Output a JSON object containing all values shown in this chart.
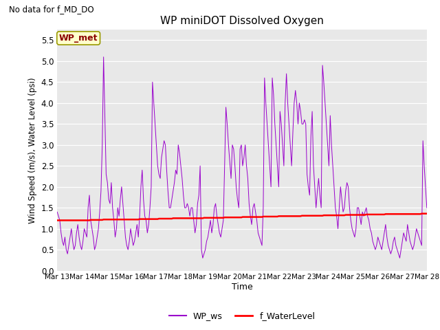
{
  "title": "WP miniDOT Dissolved Oxygen",
  "no_data_text": "No data for f_MD_DO",
  "ylabel": "Wind Speed (m/s), Water Level (psi)",
  "xlabel": "Time",
  "ylim": [
    0.0,
    5.75
  ],
  "yticks": [
    0.0,
    0.5,
    1.0,
    1.5,
    2.0,
    2.5,
    3.0,
    3.5,
    4.0,
    4.5,
    5.0,
    5.5
  ],
  "annotation_text": "WP_met",
  "legend_ws": "WP_ws",
  "legend_wl": "f_WaterLevel",
  "ws_color": "#9900CC",
  "wl_color": "#FF0000",
  "background_color": "#E8E8E8",
  "fig_background": "#FFFFFF",
  "xtick_labels": [
    "Mar 13",
    "Mar 14",
    "Mar 15",
    "Mar 16",
    "Mar 17",
    "Mar 18",
    "Mar 19",
    "Mar 20",
    "Mar 21",
    "Mar 22",
    "Mar 23",
    "Mar 24",
    "Mar 25",
    "Mar 26",
    "Mar 27",
    "Mar 28"
  ],
  "ws_data": [
    1.4,
    1.3,
    1.2,
    0.9,
    0.7,
    0.6,
    0.8,
    0.5,
    0.4,
    0.6,
    0.8,
    1.0,
    0.7,
    0.5,
    0.6,
    0.9,
    1.1,
    0.8,
    0.6,
    0.5,
    0.7,
    1.0,
    0.9,
    0.8,
    1.5,
    1.8,
    1.2,
    1.0,
    0.8,
    0.5,
    0.6,
    0.8,
    1.0,
    1.4,
    1.9,
    3.0,
    5.1,
    3.7,
    2.3,
    2.1,
    1.7,
    1.6,
    2.1,
    1.5,
    1.2,
    0.8,
    1.0,
    1.5,
    1.3,
    1.7,
    2.0,
    1.6,
    1.2,
    0.8,
    0.6,
    0.5,
    0.7,
    1.0,
    0.8,
    0.6,
    0.7,
    0.9,
    1.1,
    0.8,
    1.3,
    2.0,
    2.4,
    1.7,
    1.3,
    1.2,
    0.9,
    1.1,
    1.5,
    2.0,
    4.5,
    4.0,
    3.5,
    3.0,
    2.5,
    2.3,
    2.2,
    2.7,
    2.9,
    3.1,
    3.0,
    2.4,
    1.9,
    1.5,
    1.5,
    1.7,
    1.9,
    2.1,
    2.4,
    2.3,
    3.0,
    2.8,
    2.5,
    2.2,
    1.8,
    1.5,
    1.5,
    1.6,
    1.5,
    1.3,
    1.5,
    1.5,
    1.2,
    0.9,
    1.1,
    1.6,
    1.8,
    2.5,
    0.5,
    0.3,
    0.4,
    0.5,
    0.7,
    0.8,
    1.0,
    1.2,
    0.9,
    1.1,
    1.5,
    1.6,
    1.3,
    1.1,
    0.9,
    0.8,
    1.0,
    1.2,
    2.5,
    3.9,
    3.5,
    3.0,
    2.6,
    2.2,
    3.0,
    2.9,
    2.5,
    2.0,
    1.7,
    1.5,
    2.9,
    3.0,
    2.5,
    2.7,
    3.0,
    2.5,
    2.2,
    1.6,
    1.3,
    1.1,
    1.5,
    1.6,
    1.4,
    1.2,
    0.9,
    0.8,
    0.7,
    0.6,
    1.5,
    4.6,
    4.0,
    3.5,
    3.0,
    2.5,
    2.0,
    4.6,
    4.2,
    3.5,
    3.0,
    2.5,
    2.0,
    3.8,
    3.5,
    3.0,
    2.5,
    4.0,
    4.7,
    4.0,
    3.5,
    3.0,
    2.5,
    3.3,
    4.0,
    4.3,
    4.0,
    3.5,
    4.0,
    3.8,
    3.5,
    3.5,
    3.6,
    3.5,
    2.3,
    2.0,
    1.8,
    3.2,
    3.8,
    2.5,
    2.0,
    1.5,
    1.9,
    2.2,
    1.8,
    1.5,
    4.9,
    4.5,
    4.0,
    3.5,
    3.0,
    2.5,
    3.7,
    3.0,
    2.5,
    2.0,
    1.5,
    1.3,
    1.0,
    1.5,
    2.0,
    1.7,
    1.4,
    1.5,
    1.9,
    2.1,
    2.0,
    1.5,
    1.2,
    1.0,
    0.9,
    0.8,
    1.0,
    1.5,
    1.5,
    1.3,
    1.1,
    1.4,
    1.3,
    1.4,
    1.5,
    1.3,
    1.2,
    1.0,
    0.9,
    0.7,
    0.6,
    0.5,
    0.6,
    0.8,
    0.7,
    0.6,
    0.5,
    0.7,
    0.9,
    1.1,
    0.8,
    0.6,
    0.5,
    0.4,
    0.5,
    0.7,
    0.8,
    0.6,
    0.5,
    0.4,
    0.3,
    0.5,
    0.7,
    0.9,
    0.8,
    0.7,
    1.1,
    0.9,
    0.7,
    0.6,
    0.5,
    0.6,
    0.8,
    1.0,
    0.9,
    0.8,
    0.7,
    0.6,
    3.1,
    2.5,
    2.0,
    1.5
  ],
  "wl_data": [
    1.2,
    1.2,
    1.2,
    1.2,
    1.2,
    1.2,
    1.2,
    1.2,
    1.2,
    1.2,
    1.2,
    1.2,
    1.2,
    1.2,
    1.2,
    1.2,
    1.2,
    1.2,
    1.2,
    1.2,
    1.2,
    1.2,
    1.2,
    1.2,
    1.2,
    1.2,
    1.21,
    1.21,
    1.21,
    1.21,
    1.21,
    1.21,
    1.21,
    1.21,
    1.21,
    1.21,
    1.22,
    1.22,
    1.22,
    1.22,
    1.22,
    1.22,
    1.22,
    1.22,
    1.22,
    1.22,
    1.22,
    1.22,
    1.22,
    1.22,
    1.22,
    1.22,
    1.22,
    1.22,
    1.22,
    1.22,
    1.22,
    1.22,
    1.22,
    1.22,
    1.22,
    1.22,
    1.22,
    1.22,
    1.23,
    1.23,
    1.23,
    1.23,
    1.23,
    1.23,
    1.23,
    1.23,
    1.23,
    1.23,
    1.23,
    1.23,
    1.23,
    1.23,
    1.23,
    1.24,
    1.24,
    1.24,
    1.24,
    1.24,
    1.24,
    1.24,
    1.24,
    1.24,
    1.24,
    1.24,
    1.25,
    1.25,
    1.25,
    1.25,
    1.25,
    1.25,
    1.25,
    1.25,
    1.25,
    1.25,
    1.25,
    1.25,
    1.25,
    1.25,
    1.25,
    1.25,
    1.25,
    1.25,
    1.25,
    1.25,
    1.25,
    1.25,
    1.25,
    1.25,
    1.26,
    1.26,
    1.26,
    1.26,
    1.26,
    1.26,
    1.26,
    1.26,
    1.26,
    1.26,
    1.26,
    1.26,
    1.26,
    1.26,
    1.26,
    1.26,
    1.27,
    1.27,
    1.27,
    1.27,
    1.27,
    1.27,
    1.27,
    1.27,
    1.27,
    1.27,
    1.27,
    1.27,
    1.27,
    1.27,
    1.28,
    1.28,
    1.28,
    1.28,
    1.28,
    1.28,
    1.28,
    1.28,
    1.28,
    1.28,
    1.28,
    1.28,
    1.28,
    1.28,
    1.28,
    1.28,
    1.29,
    1.29,
    1.29,
    1.29,
    1.29,
    1.29,
    1.29,
    1.29,
    1.29,
    1.29,
    1.29,
    1.29,
    1.3,
    1.3,
    1.3,
    1.3,
    1.3,
    1.3,
    1.3,
    1.3,
    1.3,
    1.3,
    1.3,
    1.3,
    1.3,
    1.3,
    1.3,
    1.3,
    1.3,
    1.3,
    1.31,
    1.31,
    1.31,
    1.31,
    1.31,
    1.31,
    1.31,
    1.31,
    1.31,
    1.31,
    1.31,
    1.31,
    1.31,
    1.31,
    1.31,
    1.31,
    1.31,
    1.32,
    1.32,
    1.32,
    1.32,
    1.32,
    1.32,
    1.32,
    1.32,
    1.32,
    1.32,
    1.32,
    1.32,
    1.32,
    1.32,
    1.32,
    1.32,
    1.32,
    1.33,
    1.33,
    1.33,
    1.33,
    1.33,
    1.33,
    1.33,
    1.33,
    1.33,
    1.33,
    1.33,
    1.33,
    1.33,
    1.33,
    1.33,
    1.33,
    1.34,
    1.34,
    1.34,
    1.34,
    1.34,
    1.34,
    1.34,
    1.34,
    1.34,
    1.34,
    1.34,
    1.34,
    1.34,
    1.34,
    1.34,
    1.35,
    1.35,
    1.35,
    1.35,
    1.35,
    1.35,
    1.35,
    1.35,
    1.35,
    1.35,
    1.35,
    1.35,
    1.35,
    1.35,
    1.35,
    1.35,
    1.35,
    1.35,
    1.35,
    1.35,
    1.35,
    1.35,
    1.35,
    1.35,
    1.35,
    1.35,
    1.35,
    1.35,
    1.36,
    1.36,
    1.36,
    1.36,
    1.36
  ]
}
